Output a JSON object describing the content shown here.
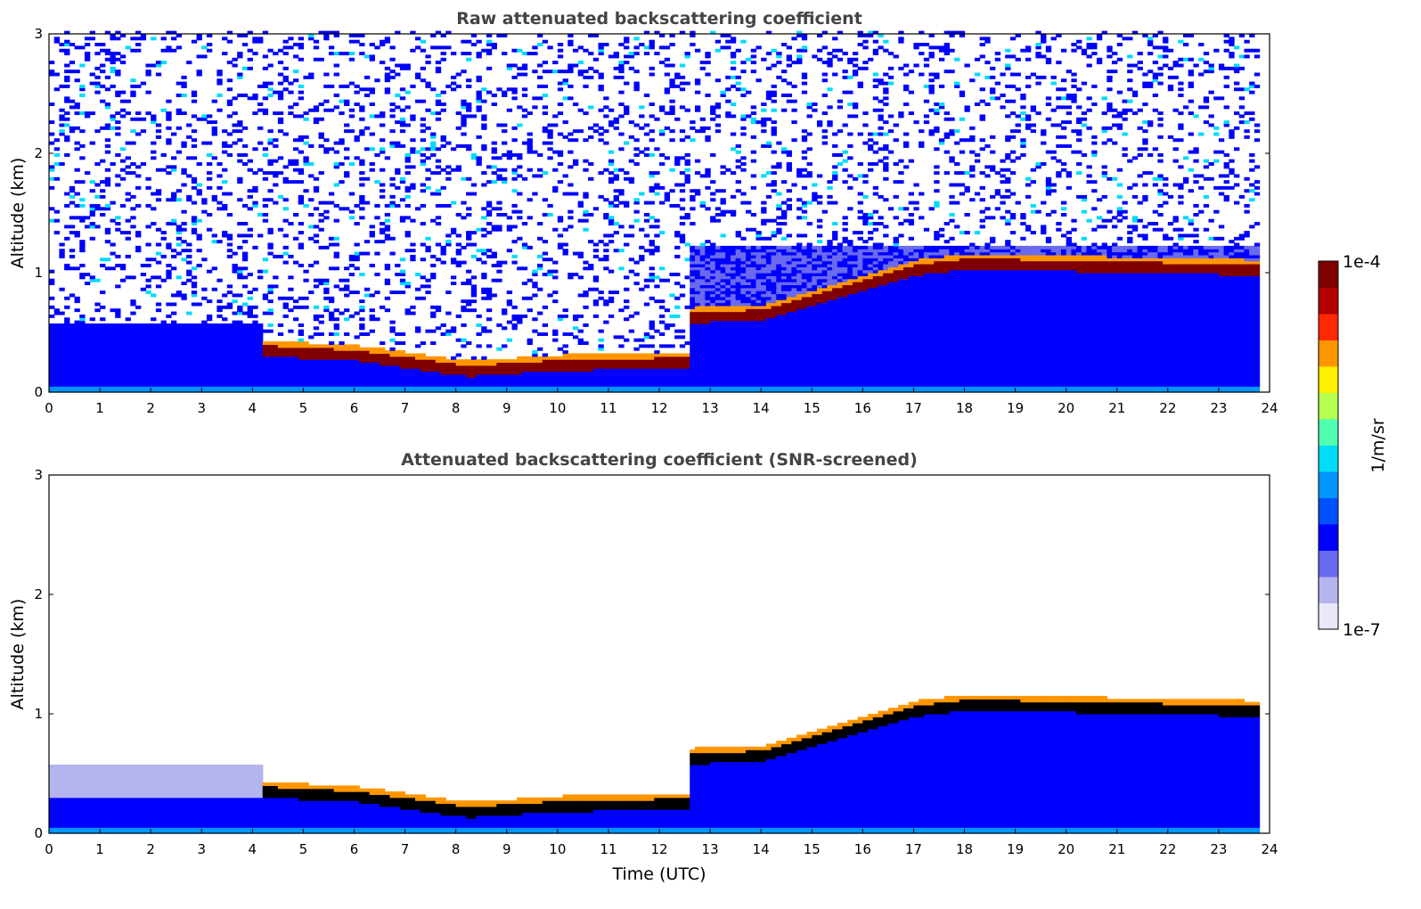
{
  "chart_data": [
    {
      "type": "heatmap",
      "title": "Raw attenuated backscattering coefficient",
      "xlabel": "",
      "ylabel": "Altitude (km)",
      "xlim": [
        0,
        24
      ],
      "ylim": [
        0,
        3
      ],
      "x_ticks": [
        "0",
        "1",
        "2",
        "3",
        "4",
        "5",
        "6",
        "7",
        "8",
        "9",
        "10",
        "11",
        "12",
        "13",
        "14",
        "15",
        "16",
        "17",
        "18",
        "19",
        "20",
        "21",
        "22",
        "23",
        "24"
      ],
      "y_ticks": [
        "0",
        "1",
        "2",
        "3"
      ],
      "cloud_base_km": [
        {
          "t": 4.2,
          "alt": 0.32
        },
        {
          "t": 6,
          "alt": 0.28
        },
        {
          "t": 8.2,
          "alt": 0.15
        },
        {
          "t": 10,
          "alt": 0.2
        },
        {
          "t": 12.5,
          "alt": 0.22
        },
        {
          "t": 12.6,
          "alt": 0.6
        },
        {
          "t": 14,
          "alt": 0.62
        },
        {
          "t": 17,
          "alt": 1.0
        },
        {
          "t": 18,
          "alt": 1.05
        },
        {
          "t": 23.5,
          "alt": 1.0
        }
      ]
    },
    {
      "type": "heatmap",
      "title": "Attenuated backscattering coefficient (SNR-screened)",
      "xlabel": "Time (UTC)",
      "ylabel": "Altitude (km)",
      "xlim": [
        0,
        24
      ],
      "ylim": [
        0,
        3
      ],
      "x_ticks": [
        "0",
        "1",
        "2",
        "3",
        "4",
        "5",
        "6",
        "7",
        "8",
        "9",
        "10",
        "11",
        "12",
        "13",
        "14",
        "15",
        "16",
        "17",
        "18",
        "19",
        "20",
        "21",
        "22",
        "23",
        "24"
      ],
      "y_ticks": [
        "0",
        "1",
        "2",
        "3"
      ],
      "cloud_base_km": [
        {
          "t": 4.2,
          "alt": 0.32
        },
        {
          "t": 6,
          "alt": 0.28
        },
        {
          "t": 8.2,
          "alt": 0.15
        },
        {
          "t": 10,
          "alt": 0.2
        },
        {
          "t": 12.5,
          "alt": 0.22
        },
        {
          "t": 12.6,
          "alt": 0.6
        },
        {
          "t": 14,
          "alt": 0.62
        },
        {
          "t": 17,
          "alt": 1.0
        },
        {
          "t": 18,
          "alt": 1.05
        },
        {
          "t": 23.5,
          "alt": 1.0
        }
      ]
    }
  ],
  "colorbar": {
    "max_label": "1e-4",
    "min_label": "1e-7",
    "unit": "1/m/sr",
    "colors": [
      "#e8e8f8",
      "#b4b4ee",
      "#6a6aee",
      "#0000ff",
      "#0050ff",
      "#0096ff",
      "#00dcfa",
      "#50ffb0",
      "#b4ff50",
      "#fff000",
      "#ff9600",
      "#ff2800",
      "#b40000",
      "#800000"
    ]
  }
}
